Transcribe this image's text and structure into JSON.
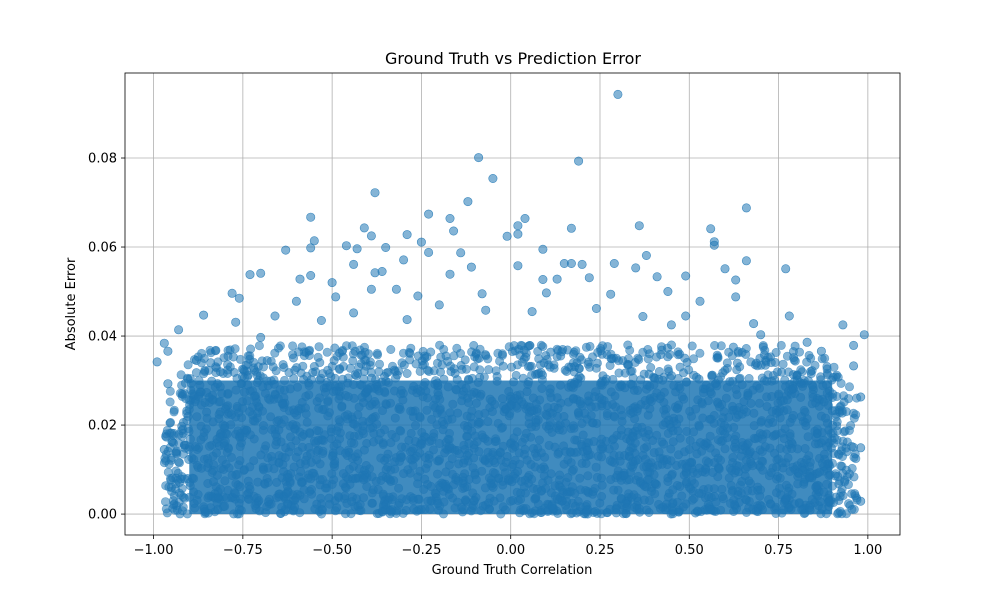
{
  "chart_data": {
    "type": "scatter",
    "title": "Ground Truth vs Prediction Error",
    "xlabel": "Ground Truth Correlation",
    "ylabel": "Absolute Error",
    "xlim": [
      -1.08,
      1.09
    ],
    "ylim": [
      -0.0047,
      0.0991
    ],
    "x_ticks": [
      -1.0,
      -0.75,
      -0.5,
      -0.25,
      0.0,
      0.25,
      0.5,
      0.75,
      1.0
    ],
    "x_tick_labels": [
      "−1.00",
      "−0.75",
      "−0.50",
      "−0.25",
      "0.00",
      "0.25",
      "0.50",
      "0.75",
      "1.00"
    ],
    "y_ticks": [
      0.0,
      0.02,
      0.04,
      0.06,
      0.08
    ],
    "y_tick_labels": [
      "0.00",
      "0.02",
      "0.04",
      "0.06",
      "0.08"
    ],
    "grid": true,
    "marker_color": "#1f77b4",
    "marker_alpha": 0.55,
    "series": [
      {
        "dense_region": {
          "x": [
            -0.97,
            0.97
          ],
          "y": [
            0.0,
            0.038
          ]
        },
        "values": [
          [
            0.3,
            0.0943
          ],
          [
            -0.09,
            0.0801
          ],
          [
            0.19,
            0.0793
          ],
          [
            -0.05,
            0.0754
          ],
          [
            -0.38,
            0.0722
          ],
          [
            -0.12,
            0.0702
          ],
          [
            0.66,
            0.0688
          ],
          [
            -0.23,
            0.0674
          ],
          [
            -0.56,
            0.0667
          ],
          [
            0.04,
            0.0664
          ],
          [
            -0.17,
            0.0664
          ],
          [
            0.36,
            0.0648
          ],
          [
            0.02,
            0.0648
          ],
          [
            -0.41,
            0.0643
          ],
          [
            0.17,
            0.0642
          ],
          [
            -0.16,
            0.0636
          ],
          [
            0.56,
            0.0641
          ],
          [
            -0.29,
            0.0628
          ],
          [
            -0.01,
            0.0624
          ],
          [
            0.02,
            0.0629
          ],
          [
            -0.39,
            0.0625
          ],
          [
            -0.55,
            0.0614
          ],
          [
            -0.25,
            0.0611
          ],
          [
            0.57,
            0.0612
          ],
          [
            0.57,
            0.0604
          ],
          [
            -0.46,
            0.0603
          ],
          [
            -0.43,
            0.0596
          ],
          [
            -0.56,
            0.0598
          ],
          [
            -0.35,
            0.0599
          ],
          [
            -0.63,
            0.0593
          ],
          [
            0.09,
            0.0595
          ],
          [
            -0.23,
            0.0588
          ],
          [
            -0.14,
            0.0587
          ],
          [
            -0.3,
            0.0571
          ],
          [
            0.38,
            0.0581
          ],
          [
            0.66,
            0.0569
          ],
          [
            0.15,
            0.0563
          ],
          [
            0.17,
            0.0563
          ],
          [
            -0.44,
            0.0561
          ],
          [
            0.02,
            0.0558
          ],
          [
            0.2,
            0.0561
          ],
          [
            0.29,
            0.0563
          ],
          [
            -0.11,
            0.0555
          ],
          [
            0.35,
            0.0553
          ],
          [
            0.6,
            0.0551
          ],
          [
            0.77,
            0.0551
          ],
          [
            -0.36,
            0.0545
          ],
          [
            -0.38,
            0.0542
          ],
          [
            -0.56,
            0.0536
          ],
          [
            0.49,
            0.0535
          ],
          [
            -0.73,
            0.0538
          ],
          [
            -0.7,
            0.0541
          ],
          [
            -0.17,
            0.0539
          ],
          [
            -0.59,
            0.0528
          ],
          [
            -0.5,
            0.052
          ],
          [
            0.22,
            0.0531
          ],
          [
            -0.78,
            0.0496
          ],
          [
            -0.76,
            0.0485
          ],
          [
            -0.86,
            0.0447
          ],
          [
            -0.77,
            0.0431
          ],
          [
            0.13,
            0.0528
          ],
          [
            0.41,
            0.0533
          ],
          [
            0.63,
            0.0526
          ],
          [
            0.09,
            0.0527
          ],
          [
            -0.39,
            0.0505
          ],
          [
            0.78,
            0.0445
          ],
          [
            0.93,
            0.0425
          ],
          [
            0.99,
            0.0403
          ],
          [
            -0.93,
            0.0414
          ],
          [
            -0.97,
            0.0384
          ],
          [
            -0.99,
            0.0342
          ],
          [
            0.96,
            0.0379
          ],
          [
            -0.96,
            0.0366
          ],
          [
            0.98,
            0.0263
          ],
          [
            -0.97,
            0.0145
          ],
          [
            0.98,
            0.0149
          ],
          [
            -0.95,
            0.006
          ],
          [
            0.98,
            0.0029
          ],
          [
            -0.96,
            0.0293
          ],
          [
            0.96,
            0.0333
          ],
          [
            -0.88,
            0.0345
          ],
          [
            0.87,
            0.0366
          ],
          [
            -0.84,
            0.034
          ],
          [
            0.83,
            0.0386
          ],
          [
            -0.7,
            0.0397
          ],
          [
            0.7,
            0.0403
          ],
          [
            0.44,
            0.05
          ],
          [
            -0.32,
            0.0505
          ],
          [
            0.28,
            0.0494
          ],
          [
            -0.08,
            0.0495
          ],
          [
            0.1,
            0.0497
          ],
          [
            -0.26,
            0.049
          ],
          [
            0.53,
            0.0478
          ],
          [
            -0.6,
            0.0478
          ],
          [
            0.63,
            0.0488
          ],
          [
            -0.49,
            0.0488
          ],
          [
            0.49,
            0.0445
          ],
          [
            -0.2,
            0.047
          ],
          [
            0.24,
            0.0462
          ],
          [
            -0.07,
            0.0458
          ],
          [
            0.37,
            0.0444
          ],
          [
            -0.44,
            0.0452
          ],
          [
            0.06,
            0.0455
          ],
          [
            -0.29,
            0.0437
          ],
          [
            0.68,
            0.0428
          ],
          [
            -0.66,
            0.0445
          ],
          [
            0.45,
            0.0425
          ],
          [
            -0.53,
            0.0435
          ]
        ]
      }
    ]
  }
}
